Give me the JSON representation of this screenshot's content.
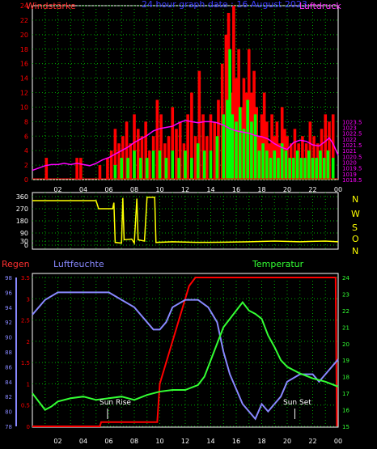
{
  "top": {
    "wind_label": "Windstärke",
    "title": "24 hour graph date : 16 August 2023",
    "pressure_label": "Luftdruck"
  },
  "direction": {
    "letters": [
      "N",
      "W",
      "S",
      "O",
      "N"
    ]
  },
  "bottom": {
    "rain_label": "Regen",
    "humidity_label": "Luftfeuchte",
    "temperature_label": "Temperatur",
    "sunrise_label": "Sun Rise",
    "sunset_label": "Sun Set"
  },
  "colors": {
    "wind_gust": "#ff0000",
    "wind_avg": "#00ff00",
    "pressure": "#ff00ff",
    "direction": "#ffff00",
    "rain": "#ff0000",
    "humidity": "#8888ff",
    "temperature": "#33ff33",
    "grid": "#00aa00"
  },
  "chart_data": [
    {
      "type": "bar",
      "name": "wind",
      "x_tick_labels": [
        "02",
        "04",
        "06",
        "08",
        "10",
        "12",
        "14",
        "16",
        "18",
        "20",
        "22",
        "00"
      ],
      "xlim": [
        0,
        24
      ],
      "y_left": {
        "label": "Windstärke",
        "ylim": [
          0,
          24
        ],
        "ticks": [
          0,
          2,
          4,
          6,
          8,
          10,
          12,
          14,
          16,
          18,
          20,
          22,
          24
        ]
      },
      "y_right": {
        "label": "Luftdruck",
        "ylim": [
          1018.5,
          1033.5
        ],
        "ticks": [
          1018.5,
          1019,
          1019.5,
          1020,
          1020.5,
          1021,
          1021.5,
          1022,
          1022.5,
          1023,
          1023.5
        ]
      },
      "gust": [
        [
          1.1,
          3
        ],
        [
          3.5,
          3
        ],
        [
          3.8,
          3
        ],
        [
          5.3,
          2
        ],
        [
          5.9,
          3
        ],
        [
          6.2,
          4
        ],
        [
          6.5,
          7
        ],
        [
          6.8,
          5
        ],
        [
          7.1,
          6
        ],
        [
          7.4,
          8
        ],
        [
          7.7,
          5
        ],
        [
          8.0,
          9
        ],
        [
          8.3,
          7
        ],
        [
          8.6,
          6
        ],
        [
          8.9,
          8
        ],
        [
          9.2,
          4
        ],
        [
          9.5,
          6
        ],
        [
          9.8,
          11
        ],
        [
          10.1,
          9
        ],
        [
          10.4,
          5
        ],
        [
          10.7,
          6
        ],
        [
          11.0,
          10
        ],
        [
          11.3,
          7
        ],
        [
          11.6,
          8
        ],
        [
          11.9,
          5
        ],
        [
          12.2,
          9
        ],
        [
          12.5,
          12
        ],
        [
          12.8,
          6
        ],
        [
          13.1,
          15
        ],
        [
          13.4,
          9
        ],
        [
          13.7,
          6
        ],
        [
          14.0,
          9
        ],
        [
          14.3,
          8
        ],
        [
          14.6,
          11
        ],
        [
          14.9,
          16
        ],
        [
          15.2,
          20
        ],
        [
          15.4,
          23
        ],
        [
          15.6,
          12
        ],
        [
          15.8,
          24
        ],
        [
          16.0,
          14
        ],
        [
          16.2,
          18
        ],
        [
          16.4,
          10
        ],
        [
          16.6,
          14
        ],
        [
          16.8,
          12
        ],
        [
          17.0,
          18
        ],
        [
          17.2,
          12
        ],
        [
          17.4,
          15
        ],
        [
          17.6,
          10
        ],
        [
          17.8,
          6
        ],
        [
          18.0,
          9
        ],
        [
          18.2,
          12
        ],
        [
          18.4,
          8
        ],
        [
          18.6,
          5
        ],
        [
          18.8,
          9
        ],
        [
          19.0,
          6
        ],
        [
          19.2,
          8
        ],
        [
          19.4,
          5
        ],
        [
          19.6,
          10
        ],
        [
          19.8,
          7
        ],
        [
          20.0,
          6
        ],
        [
          20.3,
          5
        ],
        [
          20.6,
          7
        ],
        [
          20.9,
          5
        ],
        [
          21.2,
          6
        ],
        [
          21.5,
          5
        ],
        [
          21.8,
          8
        ],
        [
          22.1,
          6
        ],
        [
          22.4,
          5
        ],
        [
          22.7,
          7
        ],
        [
          23.0,
          9
        ],
        [
          23.3,
          8
        ],
        [
          23.6,
          9
        ]
      ],
      "average": [
        [
          6.5,
          2
        ],
        [
          7.0,
          3
        ],
        [
          7.5,
          3
        ],
        [
          8.0,
          4
        ],
        [
          8.5,
          3
        ],
        [
          9.0,
          3
        ],
        [
          9.5,
          4
        ],
        [
          10.0,
          4
        ],
        [
          10.5,
          3
        ],
        [
          11.0,
          4
        ],
        [
          11.5,
          3
        ],
        [
          12.0,
          4
        ],
        [
          12.5,
          3
        ],
        [
          13.0,
          5
        ],
        [
          13.5,
          4
        ],
        [
          14.0,
          4
        ],
        [
          14.5,
          6
        ],
        [
          15.0,
          9
        ],
        [
          15.3,
          11
        ],
        [
          15.5,
          18
        ],
        [
          15.7,
          9
        ],
        [
          16.0,
          8
        ],
        [
          16.3,
          10
        ],
        [
          16.6,
          7
        ],
        [
          16.9,
          11
        ],
        [
          17.2,
          8
        ],
        [
          17.5,
          9
        ],
        [
          17.8,
          4
        ],
        [
          18.1,
          5
        ],
        [
          18.4,
          4
        ],
        [
          18.7,
          3
        ],
        [
          19.0,
          4
        ],
        [
          19.3,
          3
        ],
        [
          19.6,
          5
        ],
        [
          19.9,
          4
        ],
        [
          20.2,
          3
        ],
        [
          20.5,
          3
        ],
        [
          20.8,
          4
        ],
        [
          21.1,
          3
        ],
        [
          21.4,
          3
        ],
        [
          21.7,
          4
        ],
        [
          22.0,
          3
        ],
        [
          22.3,
          3
        ],
        [
          22.6,
          4
        ],
        [
          22.9,
          3
        ],
        [
          23.2,
          4
        ],
        [
          23.6,
          3
        ]
      ],
      "pressure": [
        [
          0,
          1019.3
        ],
        [
          0.5,
          1019.5
        ],
        [
          1,
          1019.7
        ],
        [
          1.5,
          1019.8
        ],
        [
          2,
          1019.8
        ],
        [
          2.5,
          1019.9
        ],
        [
          3,
          1019.8
        ],
        [
          3.5,
          1019.9
        ],
        [
          4,
          1019.8
        ],
        [
          4.5,
          1019.7
        ],
        [
          5,
          1019.9
        ],
        [
          5.5,
          1020.2
        ],
        [
          6,
          1020.4
        ],
        [
          6.5,
          1020.7
        ],
        [
          7,
          1021.0
        ],
        [
          7.5,
          1021.3
        ],
        [
          8,
          1021.7
        ],
        [
          8.5,
          1022.0
        ],
        [
          9,
          1022.3
        ],
        [
          9.5,
          1022.7
        ],
        [
          10,
          1022.9
        ],
        [
          10.5,
          1023.0
        ],
        [
          11,
          1023.1
        ],
        [
          11.5,
          1023.4
        ],
        [
          12,
          1023.6
        ],
        [
          12.5,
          1023.5
        ],
        [
          13,
          1023.4
        ],
        [
          13.5,
          1023.5
        ],
        [
          14,
          1023.5
        ],
        [
          14.5,
          1023.4
        ],
        [
          15,
          1023.2
        ],
        [
          15.5,
          1022.9
        ],
        [
          16,
          1022.7
        ],
        [
          16.5,
          1022.6
        ],
        [
          17,
          1022.5
        ],
        [
          17.5,
          1022.3
        ],
        [
          18,
          1022.2
        ],
        [
          18.5,
          1022.0
        ],
        [
          19,
          1021.6
        ],
        [
          19.5,
          1021.3
        ],
        [
          20,
          1021.1
        ],
        [
          20.5,
          1021.7
        ],
        [
          21,
          1021.9
        ],
        [
          21.5,
          1021.8
        ],
        [
          22,
          1021.5
        ],
        [
          22.5,
          1021.4
        ],
        [
          23,
          1021.8
        ],
        [
          23.3,
          1022.1
        ],
        [
          23.6,
          1021.6
        ],
        [
          24,
          1020.6
        ]
      ]
    },
    {
      "type": "line",
      "name": "wind direction",
      "xlim": [
        0,
        24
      ],
      "ylim": [
        0,
        360
      ],
      "ticks": [
        0,
        30,
        90,
        180,
        270,
        360
      ],
      "values": [
        [
          0,
          330
        ],
        [
          5,
          330
        ],
        [
          5.2,
          270
        ],
        [
          6.3,
          270
        ],
        [
          6.4,
          315
        ],
        [
          6.5,
          20
        ],
        [
          7.0,
          15
        ],
        [
          7.1,
          350
        ],
        [
          7.2,
          40
        ],
        [
          7.8,
          45
        ],
        [
          8.0,
          15
        ],
        [
          8.2,
          345
        ],
        [
          8.3,
          40
        ],
        [
          8.8,
          30
        ],
        [
          9.0,
          355
        ],
        [
          9.6,
          355
        ],
        [
          9.7,
          20
        ],
        [
          11,
          25
        ],
        [
          13,
          20
        ],
        [
          15,
          22
        ],
        [
          17,
          25
        ],
        [
          19,
          30
        ],
        [
          21,
          25
        ],
        [
          23,
          30
        ],
        [
          24,
          25
        ]
      ]
    },
    {
      "type": "line",
      "name": "humidity, rain, temperature",
      "xlim": [
        0,
        24
      ],
      "rain": {
        "label": "Regen",
        "ylim": [
          0,
          3.5
        ],
        "ticks": [
          0,
          0.5,
          1,
          1.5,
          2,
          2.5,
          3,
          3.5
        ],
        "values": [
          [
            0,
            0
          ],
          [
            5.3,
            0
          ],
          [
            5.4,
            0.1
          ],
          [
            9.8,
            0.1
          ],
          [
            10.0,
            1.0
          ],
          [
            10.5,
            1.5
          ],
          [
            11.0,
            2.0
          ],
          [
            11.5,
            2.5
          ],
          [
            12.0,
            3.0
          ],
          [
            12.3,
            3.3
          ],
          [
            12.8,
            3.5
          ],
          [
            23.8,
            3.5
          ],
          [
            23.9,
            0
          ]
        ]
      },
      "humidity": {
        "label": "Luftfeuchte",
        "ylim": [
          78,
          98
        ],
        "ticks": [
          78,
          80,
          82,
          84,
          86,
          88,
          90,
          92,
          94,
          96,
          98
        ],
        "values": [
          [
            0,
            93
          ],
          [
            0.5,
            94
          ],
          [
            1,
            95
          ],
          [
            2,
            96
          ],
          [
            4,
            96
          ],
          [
            6,
            96
          ],
          [
            7,
            95
          ],
          [
            8,
            94
          ],
          [
            9,
            92
          ],
          [
            9.5,
            91
          ],
          [
            10,
            91
          ],
          [
            10.5,
            92
          ],
          [
            11,
            94
          ],
          [
            12,
            95
          ],
          [
            13,
            95
          ],
          [
            13.8,
            94
          ],
          [
            14.5,
            92
          ],
          [
            15,
            88
          ],
          [
            15.5,
            85
          ],
          [
            16,
            83
          ],
          [
            16.5,
            81
          ],
          [
            17,
            80
          ],
          [
            17.5,
            79
          ],
          [
            18,
            81
          ],
          [
            18.5,
            80
          ],
          [
            19,
            81
          ],
          [
            19.5,
            82
          ],
          [
            20,
            84
          ],
          [
            21,
            85
          ],
          [
            22,
            85
          ],
          [
            22.5,
            84
          ],
          [
            23,
            85
          ],
          [
            23.5,
            86
          ],
          [
            24,
            87
          ]
        ]
      },
      "temperature": {
        "label": "Temperatur",
        "ylim": [
          15,
          24
        ],
        "ticks": [
          15,
          16,
          17,
          18,
          19,
          20,
          21,
          22,
          23,
          24
        ],
        "values": [
          [
            0,
            17
          ],
          [
            0.5,
            16.5
          ],
          [
            1,
            16
          ],
          [
            1.5,
            16.2
          ],
          [
            2,
            16.5
          ],
          [
            3,
            16.7
          ],
          [
            4,
            16.8
          ],
          [
            5,
            16.6
          ],
          [
            6,
            16.7
          ],
          [
            7,
            16.8
          ],
          [
            8,
            16.6
          ],
          [
            9,
            16.9
          ],
          [
            10,
            17.1
          ],
          [
            11,
            17.2
          ],
          [
            12,
            17.2
          ],
          [
            13,
            17.5
          ],
          [
            13.5,
            18.0
          ],
          [
            14,
            19.0
          ],
          [
            14.5,
            20.0
          ],
          [
            15,
            21.0
          ],
          [
            15.5,
            21.5
          ],
          [
            16,
            22.0
          ],
          [
            16.5,
            22.5
          ],
          [
            17,
            22.0
          ],
          [
            17.5,
            21.8
          ],
          [
            18,
            21.5
          ],
          [
            18.5,
            20.5
          ],
          [
            19,
            19.8
          ],
          [
            19.5,
            19.0
          ],
          [
            20,
            18.6
          ],
          [
            21,
            18.2
          ],
          [
            22,
            17.9
          ],
          [
            23,
            17.7
          ],
          [
            24,
            17.4
          ]
        ]
      },
      "sunrise_hour": 5.9,
      "sunset_hour": 20.6
    }
  ]
}
